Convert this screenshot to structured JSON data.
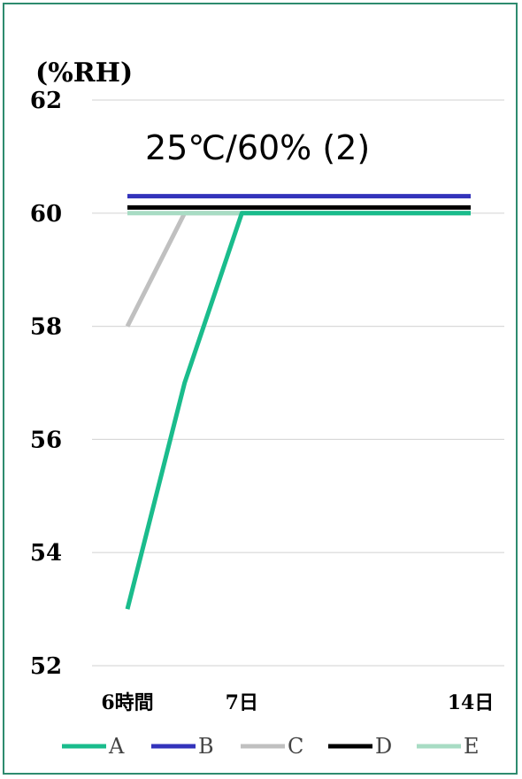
{
  "chart_data": {
    "type": "line",
    "title": "25℃/60% (2)",
    "ylabel": "(%RH)",
    "xlabel": "",
    "categories": [
      "6時間",
      "",
      "7日",
      "",
      "",
      "",
      "14日"
    ],
    "x_tick_labels": [
      "6時間",
      "7日",
      "14日"
    ],
    "ylim": [
      52,
      62
    ],
    "yticks": [
      52,
      54,
      56,
      58,
      60,
      62
    ],
    "grid": true,
    "legend_position": "bottom",
    "series": [
      {
        "name": "A",
        "color": "#1abc8c",
        "values": [
          53,
          57,
          60,
          60,
          60,
          60,
          60
        ]
      },
      {
        "name": "B",
        "color": "#3333bb",
        "values": [
          60.3,
          60.3,
          60.3,
          60.3,
          60.3,
          60.3,
          60.3
        ]
      },
      {
        "name": "C",
        "color": "#c0c0c0",
        "values": [
          58,
          60,
          60,
          60,
          60,
          60,
          60
        ]
      },
      {
        "name": "D",
        "color": "#000000",
        "values": [
          60.1,
          60.1,
          60.1,
          60.1,
          60.1,
          60.1,
          60.1
        ]
      },
      {
        "name": "E",
        "color": "#a8dcc4",
        "values": [
          60,
          60,
          60,
          60,
          60,
          60,
          60
        ]
      }
    ]
  }
}
